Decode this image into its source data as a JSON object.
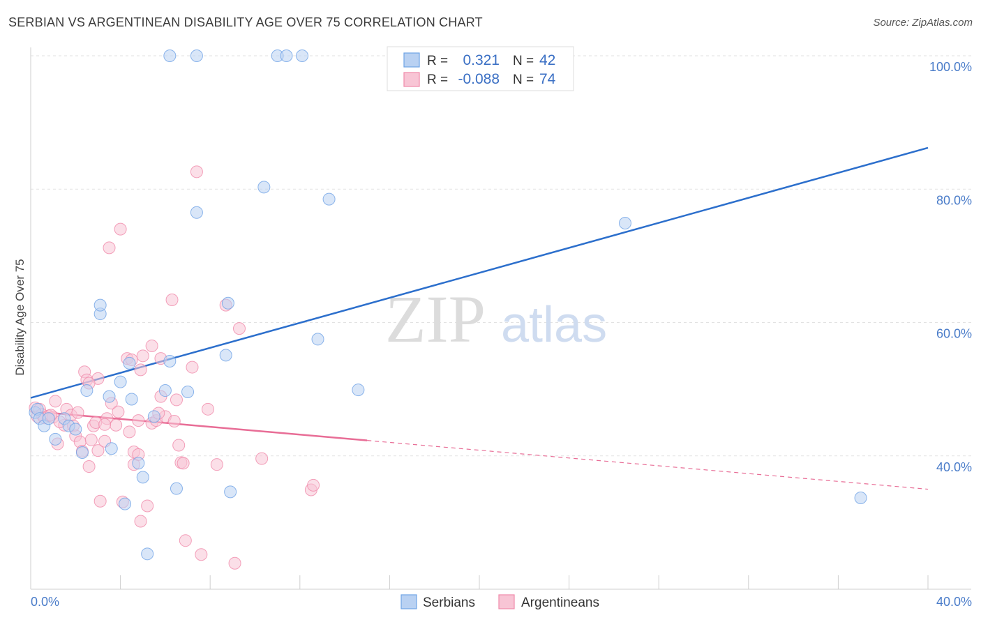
{
  "title": "SERBIAN VS ARGENTINEAN DISABILITY AGE OVER 75 CORRELATION CHART",
  "source": "Source: ZipAtlas.com",
  "watermark": {
    "zip": "ZIP",
    "atlas": "atlas"
  },
  "colors": {
    "serbian": "#6fa3e6",
    "serbian_fill": "#b9d1f2",
    "argentinean": "#f08aaa",
    "argentinean_fill": "#f8c5d5",
    "serbian_line": "#2c6fcc",
    "argentinean_line": "#e86d96",
    "axis_label": "#4a7cc9"
  },
  "legend": {
    "r_label": "R =",
    "n_label": "N =",
    "serbian_r": "0.321",
    "serbian_n": "42",
    "argentinean_r": "-0.088",
    "argentinean_n": "74"
  },
  "bottom_legend": {
    "serbian": "Serbians",
    "argentinean": "Argentineans"
  },
  "chart_data": {
    "type": "scatter",
    "title": "SERBIAN VS ARGENTINEAN DISABILITY AGE OVER 75 CORRELATION CHART",
    "xlabel": "",
    "ylabel": "Disability Age Over 75",
    "xlim": [
      0,
      40
    ],
    "ylim": [
      20,
      100
    ],
    "x_tick_labels": [
      "0.0%",
      "40.0%"
    ],
    "y_ticks": [
      40,
      60,
      80,
      100
    ],
    "y_tick_labels": [
      "40.0%",
      "60.0%",
      "80.0%",
      "100.0%"
    ],
    "series": [
      {
        "name": "Serbians",
        "r": 0.321,
        "n": 42,
        "trend": {
          "x": [
            0,
            40
          ],
          "y": [
            48.7,
            86.2
          ],
          "dashed_from": null
        },
        "points": [
          [
            0.2,
            46.5
          ],
          [
            0.3,
            47.0
          ],
          [
            0.4,
            45.6
          ],
          [
            0.6,
            44.5
          ],
          [
            0.8,
            45.6
          ],
          [
            1.1,
            42.5
          ],
          [
            1.5,
            45.6
          ],
          [
            1.7,
            44.5
          ],
          [
            2.0,
            44.0
          ],
          [
            2.3,
            40.5
          ],
          [
            2.5,
            49.8
          ],
          [
            3.1,
            61.3
          ],
          [
            3.1,
            62.6
          ],
          [
            3.5,
            48.9
          ],
          [
            3.6,
            41.1
          ],
          [
            4.0,
            51.1
          ],
          [
            4.2,
            32.8
          ],
          [
            4.4,
            53.9
          ],
          [
            4.5,
            48.5
          ],
          [
            4.8,
            38.9
          ],
          [
            5.0,
            36.8
          ],
          [
            5.2,
            25.3
          ],
          [
            5.5,
            45.9
          ],
          [
            6.0,
            49.8
          ],
          [
            6.2,
            54.2
          ],
          [
            6.2,
            100.0
          ],
          [
            6.5,
            35.1
          ],
          [
            7.0,
            49.6
          ],
          [
            7.4,
            76.5
          ],
          [
            7.4,
            100.0
          ],
          [
            8.7,
            55.1
          ],
          [
            8.8,
            62.9
          ],
          [
            8.9,
            34.6
          ],
          [
            10.4,
            80.3
          ],
          [
            11.0,
            100.0
          ],
          [
            11.4,
            100.0
          ],
          [
            12.1,
            100.0
          ],
          [
            12.8,
            57.5
          ],
          [
            13.3,
            78.5
          ],
          [
            14.6,
            49.9
          ],
          [
            26.5,
            74.9
          ],
          [
            37.0,
            33.7
          ]
        ]
      },
      {
        "name": "Argentineans",
        "r": -0.088,
        "n": 74,
        "trend": {
          "x": [
            0,
            40
          ],
          "y": [
            46.7,
            35.0
          ],
          "dashed_from": 15.0
        },
        "points": [
          [
            0.2,
            47.2
          ],
          [
            0.3,
            45.9
          ],
          [
            0.4,
            47.0
          ],
          [
            0.5,
            46.2
          ],
          [
            0.6,
            45.7
          ],
          [
            0.8,
            46.0
          ],
          [
            1.0,
            45.8
          ],
          [
            1.1,
            48.2
          ],
          [
            1.2,
            41.8
          ],
          [
            1.5,
            44.6
          ],
          [
            1.6,
            47.0
          ],
          [
            1.8,
            46.1
          ],
          [
            1.9,
            44.5
          ],
          [
            2.0,
            43.0
          ],
          [
            2.1,
            46.5
          ],
          [
            2.2,
            42.1
          ],
          [
            2.3,
            40.7
          ],
          [
            2.4,
            52.6
          ],
          [
            2.5,
            51.4
          ],
          [
            2.6,
            38.4
          ],
          [
            2.7,
            42.4
          ],
          [
            2.8,
            44.5
          ],
          [
            2.9,
            45.0
          ],
          [
            3.0,
            51.6
          ],
          [
            3.0,
            40.8
          ],
          [
            3.1,
            33.2
          ],
          [
            3.3,
            42.2
          ],
          [
            3.4,
            45.6
          ],
          [
            3.5,
            71.2
          ],
          [
            3.6,
            47.9
          ],
          [
            3.8,
            44.6
          ],
          [
            3.9,
            46.6
          ],
          [
            4.0,
            74.0
          ],
          [
            4.1,
            33.1
          ],
          [
            4.3,
            54.6
          ],
          [
            4.4,
            43.6
          ],
          [
            4.5,
            54.4
          ],
          [
            4.6,
            40.6
          ],
          [
            4.6,
            38.7
          ],
          [
            4.8,
            45.3
          ],
          [
            4.8,
            40.2
          ],
          [
            4.9,
            52.9
          ],
          [
            4.9,
            30.2
          ],
          [
            5.0,
            55.0
          ],
          [
            5.2,
            32.5
          ],
          [
            5.4,
            44.9
          ],
          [
            5.4,
            56.5
          ],
          [
            5.6,
            45.3
          ],
          [
            5.8,
            54.6
          ],
          [
            5.8,
            48.9
          ],
          [
            6.0,
            45.9
          ],
          [
            6.3,
            63.4
          ],
          [
            6.5,
            48.4
          ],
          [
            6.6,
            41.6
          ],
          [
            6.7,
            39.0
          ],
          [
            6.8,
            38.9
          ],
          [
            6.9,
            27.3
          ],
          [
            7.2,
            53.3
          ],
          [
            7.4,
            82.6
          ],
          [
            7.6,
            25.2
          ],
          [
            7.9,
            47.0
          ],
          [
            8.3,
            38.7
          ],
          [
            8.7,
            62.6
          ],
          [
            9.1,
            23.9
          ],
          [
            9.3,
            59.1
          ],
          [
            10.3,
            39.6
          ],
          [
            12.5,
            34.9
          ],
          [
            12.6,
            35.6
          ],
          [
            1.3,
            45.1
          ],
          [
            0.9,
            46.1
          ],
          [
            2.6,
            50.9
          ],
          [
            5.7,
            46.4
          ],
          [
            3.3,
            44.7
          ],
          [
            6.4,
            45.2
          ]
        ]
      }
    ]
  }
}
